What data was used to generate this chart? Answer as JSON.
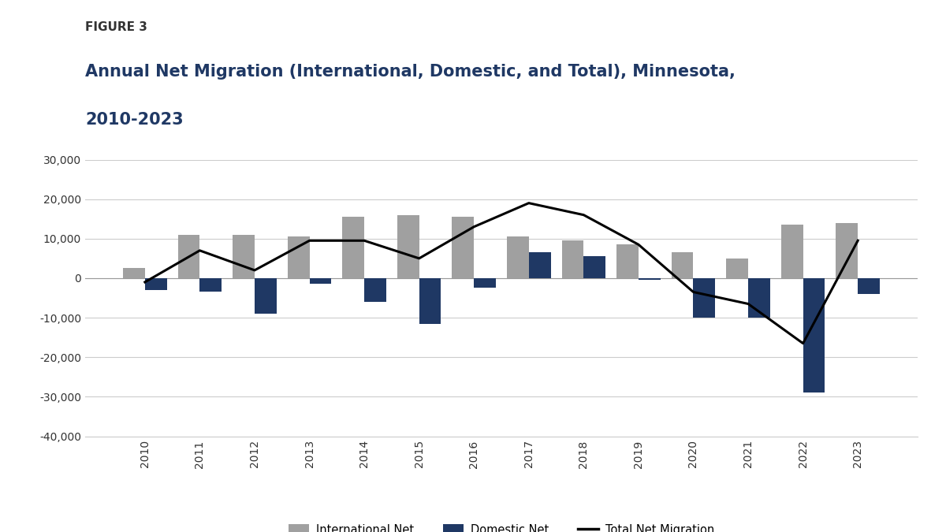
{
  "years": [
    2010,
    2011,
    2012,
    2013,
    2014,
    2015,
    2016,
    2017,
    2018,
    2019,
    2020,
    2021,
    2022,
    2023
  ],
  "international_net": [
    2500,
    11000,
    11000,
    10500,
    15500,
    16000,
    15500,
    10500,
    9500,
    8500,
    6500,
    5000,
    13500,
    14000
  ],
  "domestic_net": [
    -3000,
    -3500,
    -9000,
    -1500,
    -6000,
    -11500,
    -2500,
    6500,
    5500,
    -500,
    -10000,
    -10000,
    -29000,
    -4000
  ],
  "total_net": [
    -1000,
    7000,
    2000,
    9500,
    9500,
    5000,
    13000,
    19000,
    16000,
    8500,
    -3500,
    -6500,
    -16500,
    9500
  ],
  "figure_label": "FIGURE 3",
  "title_line1": "Annual Net Migration (International, Domestic, and Total), Minnesota,",
  "title_line2": "2010-2023",
  "title_color": "#1f3864",
  "figure_label_color": "#333333",
  "bar_color_international": "#a0a0a0",
  "bar_color_domestic": "#1f3864",
  "line_color": "#000000",
  "ylim": [
    -40000,
    30000
  ],
  "yticks": [
    -40000,
    -30000,
    -20000,
    -10000,
    0,
    10000,
    20000,
    30000
  ],
  "background_color": "#ffffff",
  "legend_labels": [
    "International Net",
    "Domestic Net",
    "Total Net Migration"
  ],
  "grid_color": "#cccccc"
}
